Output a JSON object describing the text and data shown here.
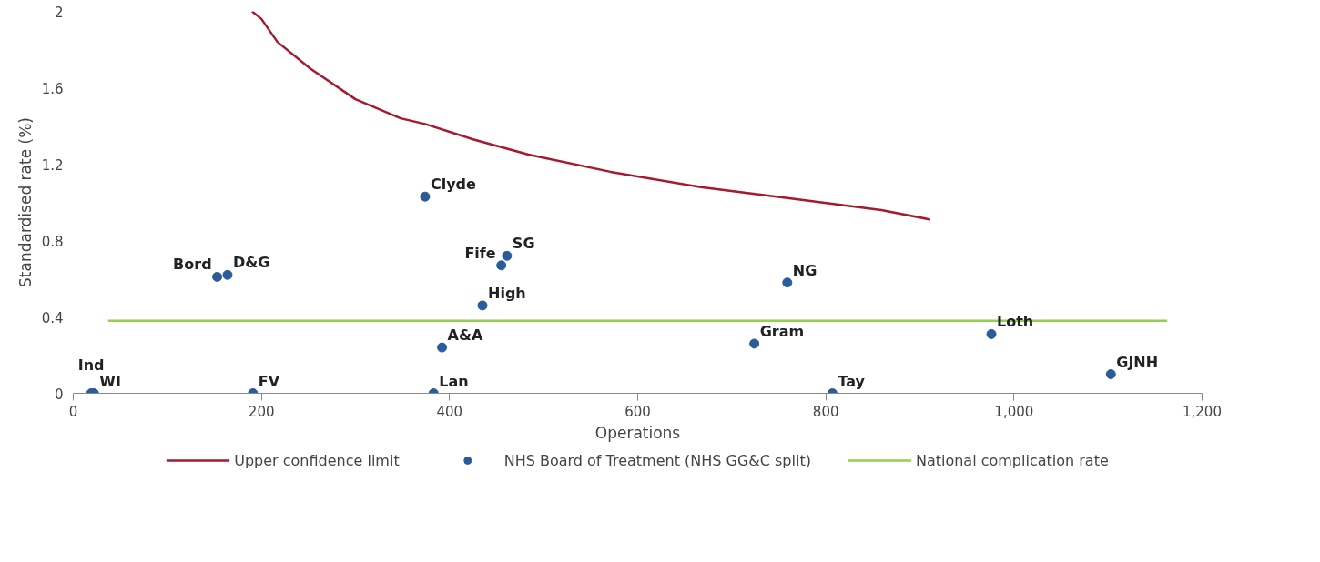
{
  "chart_data": {
    "type": "scatter",
    "xlabel": "Operations",
    "ylabel": "Standardised rate (%)",
    "xlim": [
      0,
      1200
    ],
    "ylim": [
      0,
      2
    ],
    "xticks": [
      0,
      200,
      400,
      600,
      800,
      {
        "value": 1000,
        "label": "1,000"
      },
      {
        "value": 1200,
        "label": "1,200"
      }
    ],
    "yticks": [
      0,
      0.4,
      0.8,
      1.2,
      1.6,
      2
    ],
    "grid": false,
    "legend": "bottom",
    "series": [
      {
        "name": "Upper confidence limit",
        "type": "line",
        "color": "#a6192e",
        "line_style": "solid",
        "x": [
          190,
          200,
          217,
          252,
          300,
          348,
          374,
          425,
          484,
          571,
          667,
          763,
          859,
          911
        ],
        "values": [
          2.0,
          1.96,
          1.84,
          1.7,
          1.54,
          1.44,
          1.41,
          1.33,
          1.25,
          1.16,
          1.08,
          1.02,
          0.96,
          0.91
        ]
      },
      {
        "name": "NHS Board of Treatment (NHS GG&C split)",
        "marker": "circle",
        "color": "#2a5c9a",
        "x": [
          19,
          22,
          191,
          383,
          807,
          153,
          164,
          374,
          455,
          461,
          435,
          392,
          759,
          724,
          976,
          1103
        ],
        "values": [
          0,
          0,
          0,
          0,
          0,
          0.61,
          0.62,
          1.03,
          0.67,
          0.72,
          0.46,
          0.24,
          0.58,
          0.26,
          0.31,
          0.1
        ]
      },
      {
        "name": "National complication rate",
        "type": "line",
        "color": "#92d050",
        "line_style": "solid",
        "x": [
          37,
          1163
        ],
        "values": [
          0.38,
          0.38
        ]
      }
    ],
    "annotations": [
      {
        "text": "Ind",
        "x": 19,
        "y": 0
      },
      {
        "text": "WI",
        "x": 22,
        "y": 0
      },
      {
        "text": "FV",
        "x": 191,
        "y": 0
      },
      {
        "text": "Lan",
        "x": 383,
        "y": 0
      },
      {
        "text": "Tay",
        "x": 807,
        "y": 0
      },
      {
        "text": "Bord",
        "x": 153,
        "y": 0.61
      },
      {
        "text": "D&G",
        "x": 164,
        "y": 0.62
      },
      {
        "text": "Clyde",
        "x": 374,
        "y": 1.03
      },
      {
        "text": "Fife",
        "x": 455,
        "y": 0.67
      },
      {
        "text": "SG",
        "x": 461,
        "y": 0.72
      },
      {
        "text": "High",
        "x": 435,
        "y": 0.46
      },
      {
        "text": "A&A",
        "x": 392,
        "y": 0.24
      },
      {
        "text": "NG",
        "x": 759,
        "y": 0.58
      },
      {
        "text": "Gram",
        "x": 724,
        "y": 0.26
      },
      {
        "text": "Loth",
        "x": 976,
        "y": 0.31
      },
      {
        "text": "GJNH",
        "x": 1103,
        "y": 0.1
      }
    ]
  }
}
